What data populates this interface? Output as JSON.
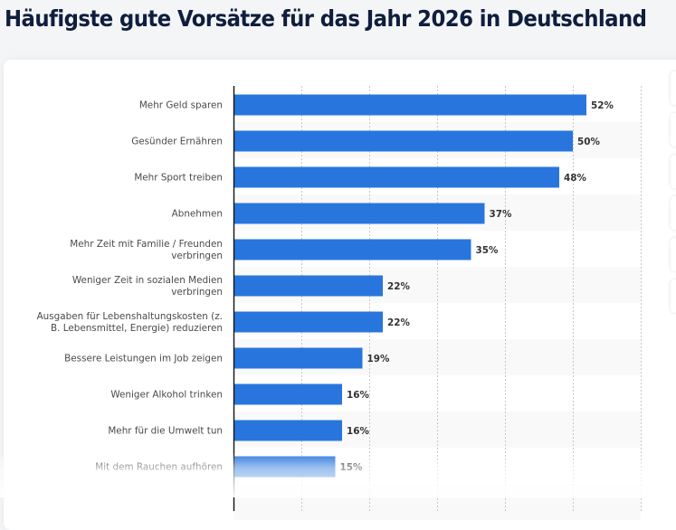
{
  "page": {
    "title": "Häufigste gute Vorsätze für das Jahr 2026 in Deutschland"
  },
  "toolbar": {
    "buttons": [
      "toolbar-button-1",
      "toolbar-button-2",
      "toolbar-button-3",
      "toolbar-button-4",
      "toolbar-button-5",
      "toolbar-button-6"
    ]
  },
  "colors": {
    "bar": "#2876dd",
    "title": "#0f1e3d",
    "band": "#f9f9f9"
  },
  "chart_data": {
    "type": "bar",
    "orientation": "horizontal",
    "title": "Häufigste gute Vorsätze für das Jahr 2026 in Deutschland",
    "xlabel": "",
    "ylabel": "",
    "xlim": [
      0,
      60
    ],
    "grid": true,
    "grid_step": 10,
    "value_suffix": "%",
    "categories": [
      [
        "Mehr Geld sparen"
      ],
      [
        "Gesünder Ernähren"
      ],
      [
        "Mehr Sport treiben"
      ],
      [
        "Abnehmen"
      ],
      [
        "Mehr Zeit mit Familie / Freunden",
        "verbringen"
      ],
      [
        "Weniger Zeit in sozialen Medien",
        "verbringen"
      ],
      [
        "Ausgaben für Lebenshaltungskosten (z.",
        "B. Lebensmittel, Energie) reduzieren"
      ],
      [
        "Bessere Leistungen im Job zeigen"
      ],
      [
        "Weniger Alkohol trinken"
      ],
      [
        "Mehr für die Umwelt tun"
      ],
      [
        "Mit dem Rauchen aufhören"
      ]
    ],
    "values": [
      52,
      50,
      48,
      37,
      35,
      22,
      22,
      19,
      16,
      16,
      15
    ],
    "value_labels": [
      "52%",
      "50%",
      "48%",
      "37%",
      "35%",
      "22%",
      "22%",
      "19%",
      "16%",
      "16%",
      "15%"
    ]
  }
}
